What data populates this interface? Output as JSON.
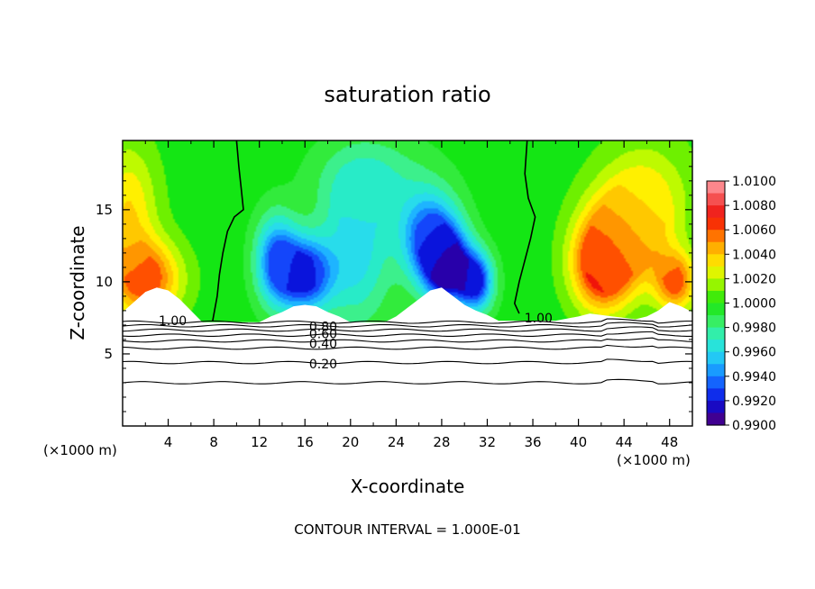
{
  "chart_data": {
    "type": "heatmap",
    "title": "saturation ratio",
    "xlabel": "X-coordinate",
    "ylabel": "Z-coordinate",
    "x_unit_left": "(×1000 m)",
    "x_unit_right": "(×1000 m)",
    "footer": "CONTOUR INTERVAL = 1.000E-01",
    "xlim": [
      0,
      50
    ],
    "ylim": [
      0,
      19.8
    ],
    "x_ticks": [
      4,
      8,
      12,
      16,
      20,
      24,
      28,
      32,
      36,
      40,
      44,
      48
    ],
    "y_ticks": [
      5,
      10,
      15
    ],
    "colorbar": {
      "min": 0.99,
      "max": 1.01,
      "labels": [
        "1.0100",
        "1.0080",
        "1.0060",
        "1.0040",
        "1.0020",
        "1.0000",
        "0.9980",
        "0.9960",
        "0.9940",
        "0.9920",
        "0.9900"
      ]
    },
    "contour_labels": [
      {
        "text": "1.00",
        "x": 4.4,
        "z": 7.3
      },
      {
        "text": "1.00",
        "x": 36.5,
        "z": 7.5
      },
      {
        "text": "0.80",
        "x": 17.6,
        "z": 6.9
      },
      {
        "text": "0.60",
        "x": 17.6,
        "z": 6.4
      },
      {
        "text": "0.40",
        "x": 17.6,
        "z": 5.7
      },
      {
        "text": "0.20",
        "x": 17.6,
        "z": 4.3
      }
    ],
    "sat_contour_z": [
      3.0,
      4.4,
      5.4,
      5.9,
      6.3,
      6.65,
      6.95,
      7.2
    ],
    "cloud_base_z": 7.2,
    "envelope": [
      [
        0,
        7.9
      ],
      [
        1,
        8.6
      ],
      [
        2,
        9.3
      ],
      [
        3,
        9.6
      ],
      [
        4,
        9.4
      ],
      [
        5,
        8.8
      ],
      [
        6,
        8.0
      ],
      [
        7,
        7.2
      ],
      [
        12,
        7.2
      ],
      [
        13,
        7.6
      ],
      [
        14,
        7.9
      ],
      [
        15,
        8.3
      ],
      [
        16,
        8.4
      ],
      [
        17,
        8.3
      ],
      [
        18,
        7.9
      ],
      [
        19,
        7.6
      ],
      [
        20,
        7.2
      ],
      [
        23,
        7.2
      ],
      [
        24,
        7.6
      ],
      [
        25,
        8.2
      ],
      [
        26,
        8.8
      ],
      [
        27,
        9.4
      ],
      [
        28,
        9.6
      ],
      [
        29,
        9.0
      ],
      [
        30,
        8.4
      ],
      [
        31,
        8.0
      ],
      [
        32,
        7.7
      ],
      [
        33,
        7.3
      ],
      [
        38,
        7.3
      ],
      [
        40,
        7.6
      ],
      [
        41,
        7.8
      ],
      [
        42,
        7.7
      ],
      [
        43,
        7.6
      ],
      [
        44,
        7.5
      ],
      [
        45,
        7.4
      ],
      [
        46,
        7.6
      ],
      [
        47,
        8.0
      ],
      [
        48,
        8.6
      ],
      [
        49,
        8.3
      ],
      [
        50,
        7.9
      ]
    ],
    "contour_1_00_left": [
      [
        7.9,
        7.3
      ],
      [
        8.3,
        9.0
      ],
      [
        8.5,
        10.5
      ],
      [
        8.8,
        12.0
      ],
      [
        9.2,
        13.5
      ],
      [
        9.8,
        14.5
      ],
      [
        10.6,
        15.0
      ],
      [
        10.4,
        16.5
      ],
      [
        10.2,
        18.0
      ],
      [
        10.0,
        19.8
      ]
    ],
    "contour_1_00_right": [
      [
        34.8,
        7.8
      ],
      [
        34.4,
        8.5
      ],
      [
        34.8,
        10.0
      ],
      [
        35.3,
        11.5
      ],
      [
        35.8,
        13.0
      ],
      [
        36.2,
        14.5
      ],
      [
        35.6,
        15.8
      ],
      [
        35.3,
        17.5
      ],
      [
        35.5,
        19.8
      ]
    ],
    "field_centers": [
      {
        "x": 2.0,
        "z": 10.2,
        "v": 1.0065,
        "sx": 3.0,
        "sz": 2.6
      },
      {
        "x": 0.5,
        "z": 15.0,
        "v": 1.0035,
        "sx": 2.5,
        "sz": 4.5
      },
      {
        "x": 16.0,
        "z": 10.5,
        "v": 0.9915,
        "sx": 2.3,
        "sz": 2.5
      },
      {
        "x": 13.5,
        "z": 11.5,
        "v": 0.9935,
        "sx": 1.8,
        "sz": 3.0
      },
      {
        "x": 28.5,
        "z": 11.0,
        "v": 0.9905,
        "sx": 2.0,
        "sz": 2.5
      },
      {
        "x": 27.0,
        "z": 13.0,
        "v": 0.9925,
        "sx": 2.5,
        "sz": 3.0
      },
      {
        "x": 31.0,
        "z": 10.0,
        "v": 0.992,
        "sx": 1.5,
        "sz": 2.0
      },
      {
        "x": 20.5,
        "z": 12.0,
        "v": 0.996,
        "sx": 3.0,
        "sz": 5.0
      },
      {
        "x": 22.0,
        "z": 17.0,
        "v": 0.9975,
        "sx": 5.0,
        "sz": 3.0
      },
      {
        "x": 42.0,
        "z": 11.0,
        "v": 1.007,
        "sx": 2.5,
        "sz": 3.0
      },
      {
        "x": 44.0,
        "z": 13.0,
        "v": 1.0055,
        "sx": 3.5,
        "sz": 3.5
      },
      {
        "x": 48.5,
        "z": 10.0,
        "v": 1.006,
        "sx": 1.8,
        "sz": 2.0
      },
      {
        "x": 46.0,
        "z": 16.0,
        "v": 1.0025,
        "sx": 4.0,
        "sz": 4.0
      }
    ]
  }
}
